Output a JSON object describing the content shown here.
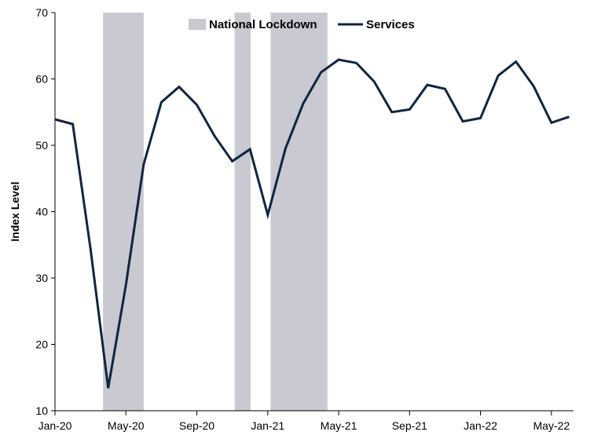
{
  "chart_data": {
    "type": "line",
    "title": "",
    "xlabel": "",
    "ylabel": "Index Level",
    "ylim": [
      10,
      70
    ],
    "yticks": [
      10,
      20,
      30,
      40,
      50,
      60,
      70
    ],
    "xlim": [
      "2020-01",
      "2022-06"
    ],
    "xticks": [
      {
        "date": "2020-01",
        "label": "Jan-20"
      },
      {
        "date": "2020-05",
        "label": "May-20"
      },
      {
        "date": "2020-09",
        "label": "Sep-20"
      },
      {
        "date": "2021-01",
        "label": "Jan-21"
      },
      {
        "date": "2021-05",
        "label": "May-21"
      },
      {
        "date": "2021-09",
        "label": "Sep-21"
      },
      {
        "date": "2022-01",
        "label": "Jan-22"
      },
      {
        "date": "2022-05",
        "label": "May-22"
      }
    ],
    "grid": false,
    "legend": {
      "position": "top-center"
    },
    "series": [
      {
        "name": "Services",
        "color": "#0f2540",
        "x": [
          "2020-01",
          "2020-02",
          "2020-03",
          "2020-04",
          "2020-05",
          "2020-06",
          "2020-07",
          "2020-08",
          "2020-09",
          "2020-10",
          "2020-11",
          "2020-12",
          "2021-01",
          "2021-02",
          "2021-03",
          "2021-04",
          "2021-05",
          "2021-06",
          "2021-07",
          "2021-08",
          "2021-09",
          "2021-10",
          "2021-11",
          "2021-12",
          "2022-01",
          "2022-02",
          "2022-03",
          "2022-04",
          "2022-05",
          "2022-06"
        ],
        "y": [
          53.9,
          53.2,
          34.5,
          13.4,
          29.0,
          47.1,
          56.5,
          58.8,
          56.1,
          51.4,
          47.6,
          49.4,
          39.5,
          49.5,
          56.3,
          61.0,
          62.9,
          62.4,
          59.6,
          55.0,
          55.4,
          59.1,
          58.5,
          53.6,
          54.1,
          60.5,
          62.6,
          58.9,
          53.4,
          54.3
        ]
      }
    ],
    "shaded_periods": {
      "name": "National Lockdown",
      "color": "#c8c9d1",
      "ranges": [
        [
          "2020-03-23",
          "2020-06-01"
        ],
        [
          "2020-11-05",
          "2020-12-02"
        ],
        [
          "2021-01-06",
          "2021-04-12"
        ]
      ]
    }
  }
}
